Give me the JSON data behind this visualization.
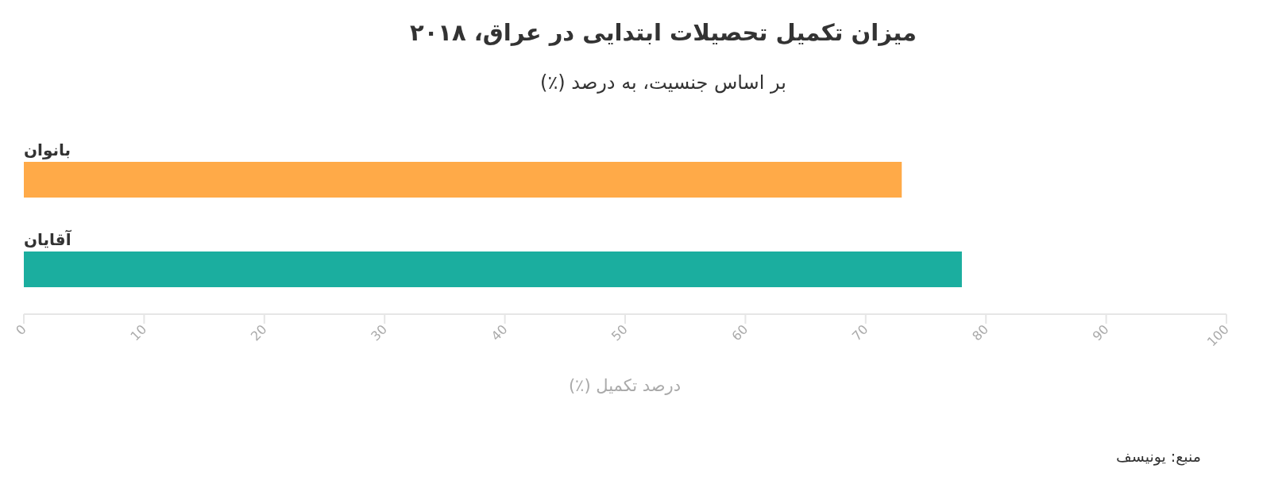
{
  "chart_data": {
    "type": "bar",
    "orientation": "horizontal",
    "title": "میزان تکمیل تحصیلات ابتدایی در عراق، ۲۰۱۸",
    "subtitle": "بر اساس جنسیت، به درصد (٪)",
    "xlabel": "درصد تکمیل (٪)",
    "categories": [
      "بانوان",
      "آقایان"
    ],
    "values": [
      73,
      78
    ],
    "colors": [
      "#ffaa48",
      "#1bae9f"
    ],
    "xlim": [
      0,
      100
    ],
    "xticks": [
      0,
      10,
      20,
      30,
      40,
      50,
      60,
      70,
      80,
      90,
      100
    ],
    "annotations": [
      "منبع: یونیسف"
    ]
  }
}
